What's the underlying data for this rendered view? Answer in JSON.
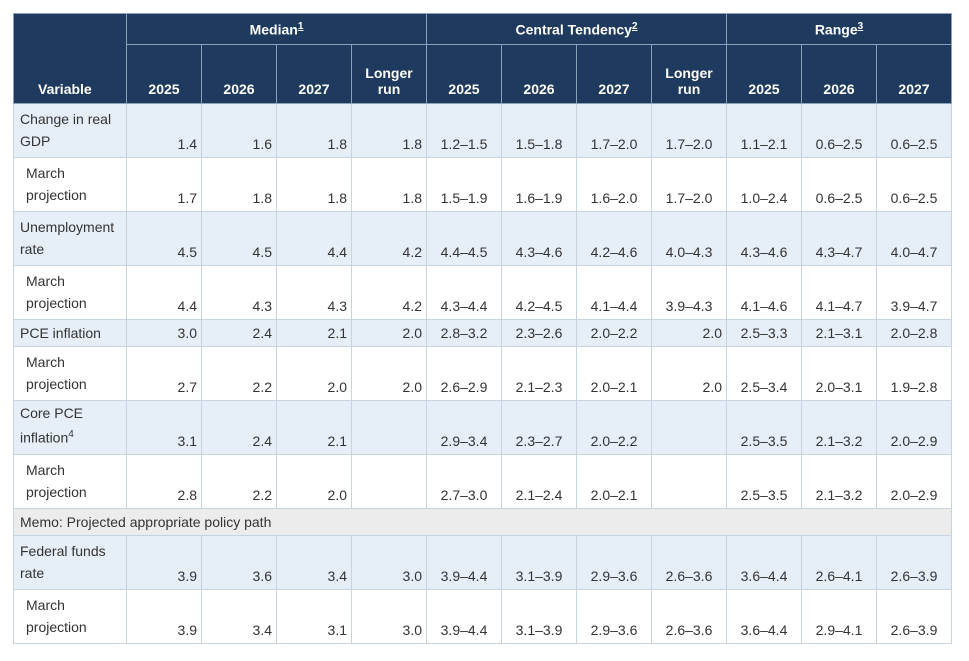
{
  "header": {
    "variable": "Variable",
    "groups": [
      {
        "label": "Median",
        "note": "1"
      },
      {
        "label": "Central Tendency",
        "note": "2"
      },
      {
        "label": "Range",
        "note": "3"
      }
    ],
    "columns": [
      "2025",
      "2026",
      "2027",
      "Longer run",
      "2025",
      "2026",
      "2027",
      "Longer run",
      "2025",
      "2026",
      "2027"
    ]
  },
  "rows": [
    {
      "label": "Change in real GDP",
      "cells": [
        "1.4",
        "1.6",
        "1.8",
        "1.8",
        "1.2–1.5",
        "1.5–1.8",
        "1.7–2.0",
        "1.7–2.0",
        "1.1–2.1",
        "0.6–2.5",
        "0.6–2.5"
      ]
    },
    {
      "label": "March projection",
      "cells": [
        "1.7",
        "1.8",
        "1.8",
        "1.8",
        "1.5–1.9",
        "1.6–1.9",
        "1.6–2.0",
        "1.7–2.0",
        "1.0–2.4",
        "0.6–2.5",
        "0.6–2.5"
      ]
    },
    {
      "label": "Unemployment rate",
      "cells": [
        "4.5",
        "4.5",
        "4.4",
        "4.2",
        "4.4–4.5",
        "4.3–4.6",
        "4.2–4.6",
        "4.0–4.3",
        "4.3–4.6",
        "4.3–4.7",
        "4.0–4.7"
      ]
    },
    {
      "label": "March projection",
      "cells": [
        "4.4",
        "4.3",
        "4.3",
        "4.2",
        "4.3–4.4",
        "4.2–4.5",
        "4.1–4.4",
        "3.9–4.3",
        "4.1–4.6",
        "4.1–4.7",
        "3.9–4.7"
      ]
    },
    {
      "label": "PCE inflation",
      "cells": [
        "3.0",
        "2.4",
        "2.1",
        "2.0",
        "2.8–3.2",
        "2.3–2.6",
        "2.0–2.2",
        "2.0",
        "2.5–3.3",
        "2.1–3.1",
        "2.0–2.8"
      ]
    },
    {
      "label": "March projection",
      "cells": [
        "2.7",
        "2.2",
        "2.0",
        "2.0",
        "2.6–2.9",
        "2.1–2.3",
        "2.0–2.1",
        "2.0",
        "2.5–3.4",
        "2.0–3.1",
        "1.9–2.8"
      ]
    },
    {
      "label": "Core PCE inflation",
      "note": "4",
      "cells": [
        "3.1",
        "2.4",
        "2.1",
        null,
        "2.9–3.4",
        "2.3–2.7",
        "2.0–2.2",
        null,
        "2.5–3.5",
        "2.1–3.2",
        "2.0–2.9"
      ]
    },
    {
      "label": "March projection",
      "cells": [
        "2.8",
        "2.2",
        "2.0",
        null,
        "2.7–3.0",
        "2.1–2.4",
        "2.0–2.1",
        null,
        "2.5–3.5",
        "2.1–3.2",
        "2.0–2.9"
      ]
    },
    {
      "memo": "Memo: Projected appropriate policy path"
    },
    {
      "label": "Federal funds rate",
      "cells": [
        "3.9",
        "3.6",
        "3.4",
        "3.0",
        "3.9–4.4",
        "3.1–3.9",
        "2.9–3.6",
        "2.6–3.6",
        "3.6–4.4",
        "2.6–4.1",
        "2.6–3.9"
      ]
    },
    {
      "label": "March projection",
      "cells": [
        "3.9",
        "3.4",
        "3.1",
        "3.0",
        "3.9–4.4",
        "3.1–3.9",
        "2.9–3.6",
        "2.6–3.6",
        "3.6–4.4",
        "2.9–4.1",
        "2.6–3.9"
      ]
    }
  ]
}
